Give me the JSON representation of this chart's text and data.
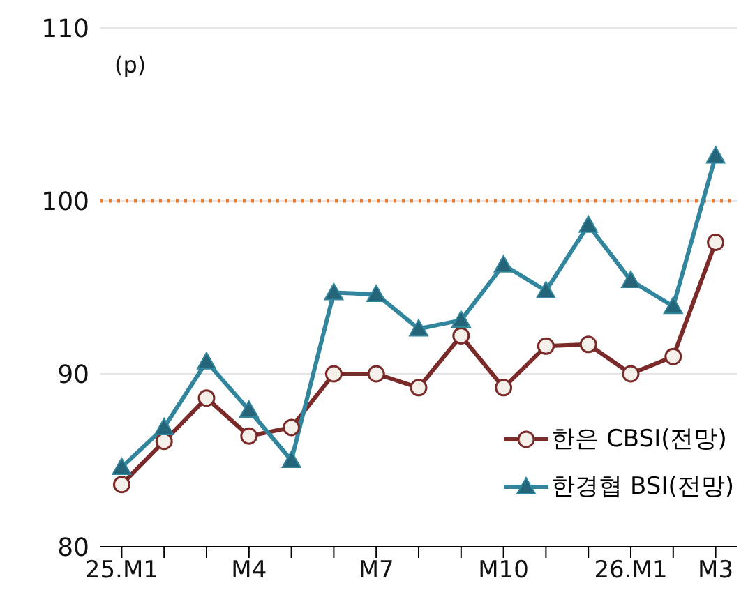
{
  "chart_data": {
    "type": "line",
    "ylabel": "(p)",
    "categories": [
      "25.M1",
      null,
      null,
      "M4",
      null,
      null,
      "M7",
      null,
      null,
      "M10",
      null,
      null,
      "26.M1",
      null,
      "M3"
    ],
    "series": [
      {
        "name": "한은 CBSI(전망)",
        "color": "#7b2a2a",
        "marker": "circle",
        "values": [
          83.6,
          86.1,
          88.6,
          86.4,
          86.9,
          90.0,
          90.0,
          89.2,
          92.2,
          89.2,
          91.6,
          91.7,
          90.0,
          91.0,
          97.6
        ]
      },
      {
        "name": "한경협 BSI(전망)",
        "color": "#31859c",
        "marker": "triangle",
        "values": [
          84.6,
          86.9,
          90.7,
          87.9,
          85.0,
          94.7,
          94.6,
          92.6,
          93.1,
          96.3,
          94.8,
          98.6,
          95.4,
          93.9,
          102.6
        ]
      }
    ],
    "ylim": [
      80,
      110
    ],
    "yticks": [
      80,
      90,
      100,
      110
    ],
    "grid": "y",
    "legend": "bottom right",
    "ref_lines": [
      {
        "axis": "y",
        "value": 100,
        "color": "#ed7d31",
        "line_style": "dotted"
      }
    ]
  }
}
